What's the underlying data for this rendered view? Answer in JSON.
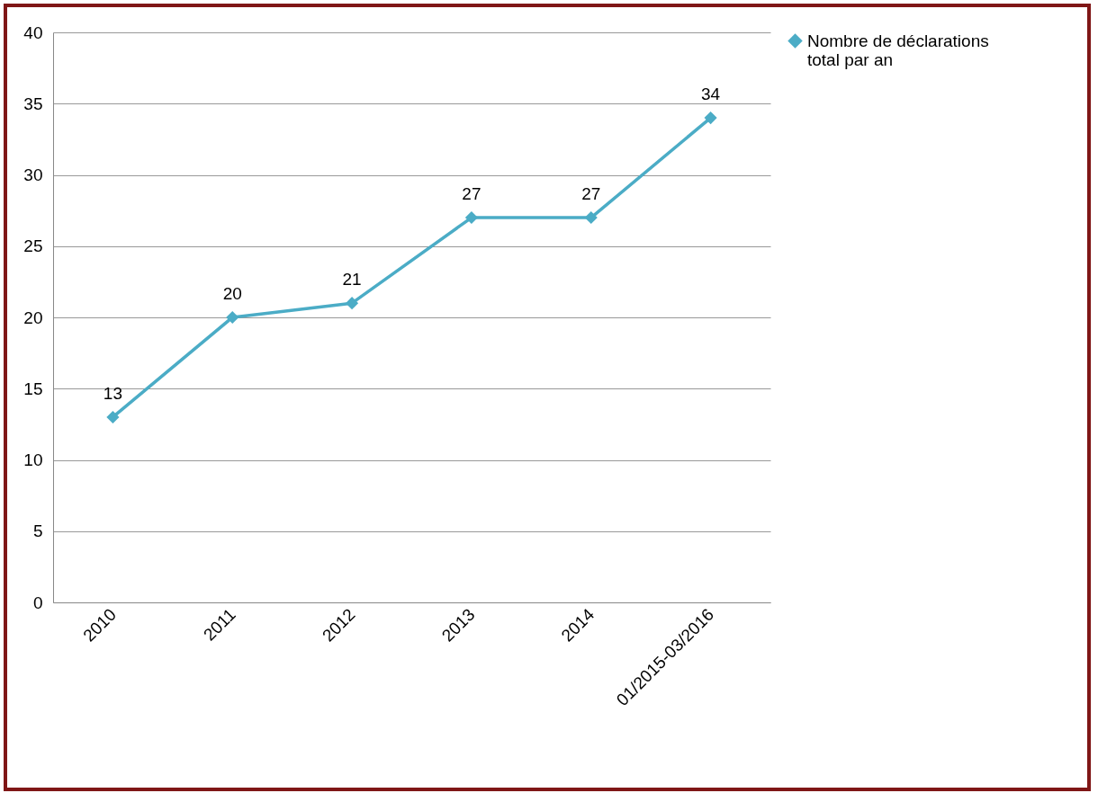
{
  "chart_data": {
    "type": "line",
    "categories": [
      "2010",
      "2011",
      "2012",
      "2013",
      "2014",
      "01/2015-03/2016"
    ],
    "series": [
      {
        "name": "Nombre de déclarations total par an",
        "color": "#4bacc6",
        "values": [
          13,
          20,
          21,
          27,
          27,
          34
        ]
      }
    ],
    "ylim": [
      0,
      40
    ],
    "yticks": [
      0,
      5,
      10,
      15,
      20,
      25,
      30,
      35,
      40
    ],
    "grid": "y",
    "legend": "right",
    "marker": "diamond",
    "line_style": "solid",
    "data_labels": true
  }
}
